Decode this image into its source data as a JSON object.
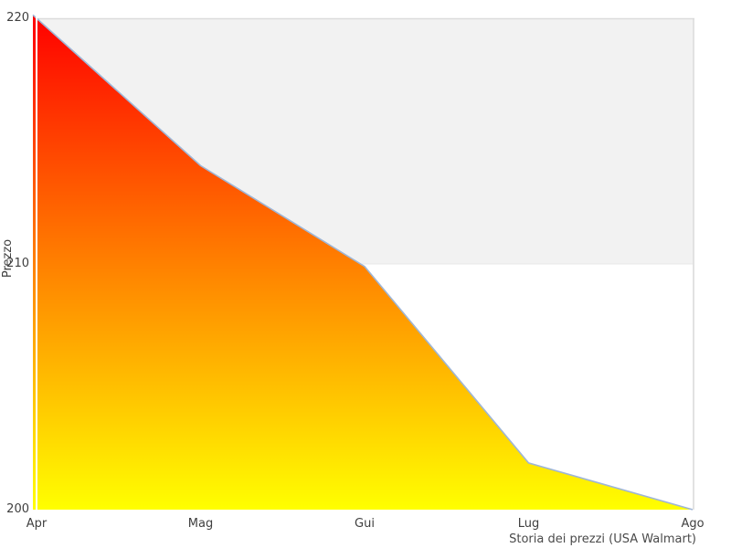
{
  "chart_data": {
    "type": "area",
    "title": "Storia dei prezzi (USA Walmart)",
    "ylabel": "Prezzo",
    "xlabel": "",
    "categories": [
      "Apr",
      "Mag",
      "Gui",
      "Lug",
      "Ago"
    ],
    "values": [
      220,
      214,
      209.9,
      201.9,
      200
    ],
    "ylim": [
      200,
      220
    ],
    "yticks": [
      220,
      210,
      200
    ],
    "grid": "horizontal",
    "legend_position": "none",
    "band": {
      "from": 210,
      "to": 220,
      "color": "#f2f2f2"
    },
    "colors": {
      "area_gradient_top": "#ff0000",
      "area_gradient_bottom": "#ffff00",
      "line": "#9fb6d6",
      "gridline": "#dcdcdc",
      "mid_gridline": "#e8e8e8",
      "right_border": "#d9d9d9",
      "axis_overlay_line": "#ffffff",
      "tick_text": "#3f3f3f"
    }
  }
}
